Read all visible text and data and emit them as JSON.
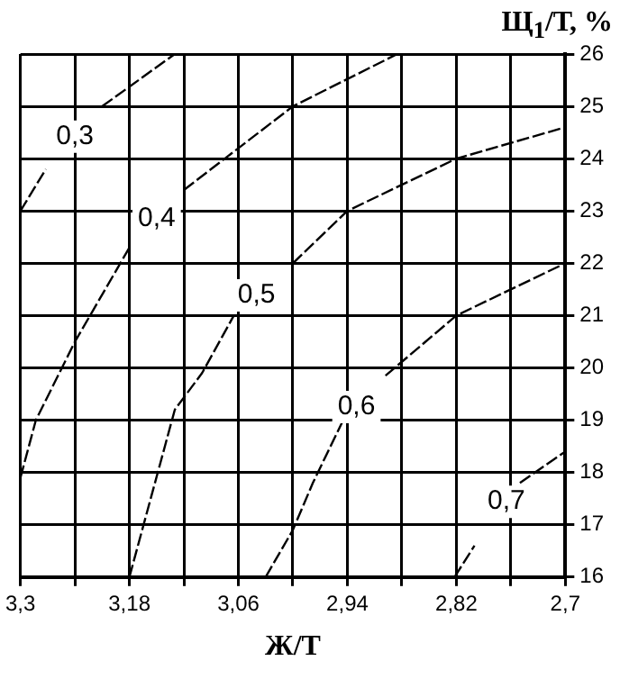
{
  "chart_data": {
    "type": "line",
    "xlabel": "Ж/Т",
    "ylabel": "Щ$_{1}$/Т, %",
    "xlim": [
      3.3,
      2.7
    ],
    "ylim": [
      16,
      26
    ],
    "xticks": [
      {
        "value": 3.3,
        "label": "3,3"
      },
      {
        "value": 3.24,
        "label": null
      },
      {
        "value": 3.18,
        "label": "3,18"
      },
      {
        "value": 3.12,
        "label": null
      },
      {
        "value": 3.06,
        "label": "3,06"
      },
      {
        "value": 3.0,
        "label": null
      },
      {
        "value": 2.94,
        "label": "2,94"
      },
      {
        "value": 2.88,
        "label": null
      },
      {
        "value": 2.82,
        "label": "2,82"
      },
      {
        "value": 2.76,
        "label": null
      },
      {
        "value": 2.7,
        "label": "2,7"
      }
    ],
    "yticks": [
      16,
      17,
      18,
      19,
      20,
      21,
      22,
      23,
      24,
      25,
      26
    ],
    "grid": true,
    "legend": false,
    "marker": "none",
    "line_style": "dashed",
    "series": [
      {
        "name": "0,3",
        "color": "#000000",
        "x": [
          3.3,
          3.272,
          3.24,
          3.21,
          3.13
        ],
        "values": [
          23,
          23.8,
          null,
          25,
          26
        ]
      },
      {
        "name": "0,4",
        "color": "#000000",
        "x": [
          3.3,
          3.283,
          3.24,
          3.18,
          3.15,
          3.12,
          3.0,
          2.885
        ],
        "values": [
          17.9,
          19.0,
          20.5,
          22.3,
          null,
          23.4,
          25.0,
          26
        ]
      },
      {
        "name": "0,5",
        "color": "#000000",
        "x": [
          3.18,
          3.13,
          3.1,
          3.065,
          3.04,
          3.0,
          2.94,
          2.82,
          2.7
        ],
        "values": [
          16,
          19.2,
          19.9,
          21.0,
          null,
          22.0,
          23.0,
          24.0,
          24.6
        ]
      },
      {
        "name": "0,6",
        "color": "#000000",
        "x": [
          3.03,
          3.0,
          2.978,
          2.946,
          2.93,
          2.898,
          2.82,
          2.7
        ],
        "values": [
          16,
          16.9,
          17.8,
          18.95,
          null,
          19.85,
          21.0,
          22.0
        ]
      },
      {
        "name": "0,7",
        "color": "#000000",
        "x": [
          2.822,
          2.8,
          2.765,
          2.75,
          2.7
        ],
        "values": [
          16,
          16.6,
          null,
          17.8,
          18.4
        ]
      }
    ]
  }
}
